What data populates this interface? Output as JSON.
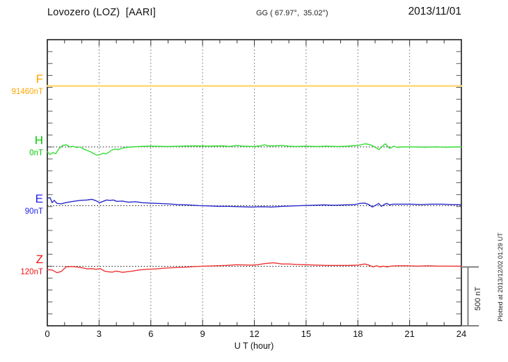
{
  "header": {
    "title": "Lovozero (LOZ)  [AARI]",
    "coords": "GG ( 67.97°,  35.02°)",
    "date": "2013/11/01"
  },
  "x_axis": {
    "label": "U T (hour)",
    "tick_labels": [
      "0",
      "3",
      "6",
      "9",
      "12",
      "15",
      "18",
      "21",
      "24"
    ]
  },
  "scale_bar": {
    "label": "500 nT",
    "nT": 500
  },
  "watermark": "Plotted at 2013/12/02 01:29 UT",
  "chart_data": {
    "type": "line",
    "title": "Lovozero (LOZ) [AARI] magnetogram, 2013/11/01",
    "xlabel": "U T (hour)",
    "x_range_hours": [
      0,
      24
    ],
    "x_major_tick_hours": 3,
    "x_minor_tick_hours": 1,
    "grid_hours": [
      3,
      6,
      9,
      12,
      15,
      18,
      21
    ],
    "nT_per_division": 100,
    "scale_bar_nT": 500,
    "grid": "vertical-dotted",
    "frame_color": "#1a1a1a",
    "baseline_style": "dotted-black",
    "series": [
      {
        "name": "F",
        "baseline_value": "91460nT",
        "label_color": "#FFA500",
        "color": "#FFD878",
        "points": [
          [
            0,
            0
          ],
          [
            24,
            0
          ]
        ]
      },
      {
        "name": "H",
        "baseline_value": "0nT",
        "label_color": "#00CC00",
        "color": "#33DD33",
        "points": [
          [
            0,
            -41
          ],
          [
            0.16,
            -64
          ],
          [
            0.32,
            -47
          ],
          [
            0.48,
            -58
          ],
          [
            0.69,
            -12
          ],
          [
            0.89,
            12
          ],
          [
            1.09,
            18
          ],
          [
            1.29,
            0
          ],
          [
            1.49,
            6
          ],
          [
            1.69,
            -6
          ],
          [
            1.9,
            0
          ],
          [
            2.1,
            -18
          ],
          [
            2.3,
            -29
          ],
          [
            2.5,
            -41
          ],
          [
            2.7,
            -58
          ],
          [
            2.9,
            -70
          ],
          [
            3.07,
            -64
          ],
          [
            3.23,
            -53
          ],
          [
            3.39,
            -58
          ],
          [
            3.55,
            -47
          ],
          [
            3.71,
            -29
          ],
          [
            3.91,
            -18
          ],
          [
            4.11,
            -23
          ],
          [
            4.32,
            -12
          ],
          [
            4.52,
            -6
          ],
          [
            4.92,
            0
          ],
          [
            5.32,
            3
          ],
          [
            5.73,
            6
          ],
          [
            6.13,
            6
          ],
          [
            6.94,
            3
          ],
          [
            7.75,
            6
          ],
          [
            8.55,
            9
          ],
          [
            9.36,
            6
          ],
          [
            10.16,
            9
          ],
          [
            10.57,
            3
          ],
          [
            10.97,
            12
          ],
          [
            11.37,
            6
          ],
          [
            11.98,
            3
          ],
          [
            12.38,
            9
          ],
          [
            12.58,
            18
          ],
          [
            12.79,
            9
          ],
          [
            13.19,
            9
          ],
          [
            13.59,
            12
          ],
          [
            13.99,
            6
          ],
          [
            14.4,
            3
          ],
          [
            15,
            6
          ],
          [
            15.61,
            3
          ],
          [
            16.21,
            6
          ],
          [
            16.82,
            3
          ],
          [
            17.42,
            6
          ],
          [
            17.82,
            12
          ],
          [
            18.03,
            12
          ],
          [
            18.43,
            26
          ],
          [
            18.63,
            21
          ],
          [
            18.83,
            12
          ],
          [
            19.03,
            -6
          ],
          [
            19.23,
            -23
          ],
          [
            19.35,
            -6
          ],
          [
            19.47,
            12
          ],
          [
            19.6,
            26
          ],
          [
            19.72,
            6
          ],
          [
            19.84,
            -12
          ],
          [
            19.96,
            -6
          ],
          [
            20.08,
            6
          ],
          [
            20.28,
            -3
          ],
          [
            20.68,
            0
          ],
          [
            21.29,
            0
          ],
          [
            21.89,
            -3
          ],
          [
            22.5,
            0
          ],
          [
            23.1,
            -3
          ],
          [
            23.7,
            0
          ],
          [
            24,
            0
          ]
        ]
      },
      {
        "name": "E",
        "baseline_value": "90nT",
        "label_color": "#2222EE",
        "color": "#2929CC",
        "points": [
          [
            0,
            63
          ],
          [
            0.16,
            68
          ],
          [
            0.28,
            25
          ],
          [
            0.4,
            45
          ],
          [
            0.56,
            19
          ],
          [
            0.81,
            16
          ],
          [
            1.09,
            27
          ],
          [
            1.49,
            36
          ],
          [
            1.9,
            45
          ],
          [
            2.3,
            48
          ],
          [
            2.58,
            54
          ],
          [
            2.82,
            42
          ],
          [
            3.03,
            25
          ],
          [
            3.23,
            36
          ],
          [
            3.43,
            48
          ],
          [
            3.63,
            45
          ],
          [
            3.83,
            48
          ],
          [
            4.03,
            36
          ],
          [
            4.32,
            39
          ],
          [
            4.72,
            30
          ],
          [
            5.12,
            33
          ],
          [
            5.53,
            25
          ],
          [
            5.93,
            22
          ],
          [
            6.33,
            19
          ],
          [
            6.94,
            16
          ],
          [
            7.54,
            10
          ],
          [
            8.15,
            7
          ],
          [
            8.75,
            1
          ],
          [
            9.36,
            -2
          ],
          [
            9.96,
            -5
          ],
          [
            10.57,
            -5
          ],
          [
            11.17,
            -8
          ],
          [
            11.78,
            -11
          ],
          [
            12.38,
            -8
          ],
          [
            12.99,
            -11
          ],
          [
            13.59,
            -5
          ],
          [
            14.2,
            -2
          ],
          [
            14.8,
            1
          ],
          [
            15.41,
            4
          ],
          [
            16.01,
            7
          ],
          [
            16.62,
            4
          ],
          [
            17.22,
            7
          ],
          [
            17.83,
            10
          ],
          [
            18.15,
            19
          ],
          [
            18.39,
            22
          ],
          [
            18.63,
            10
          ],
          [
            18.84,
            -11
          ],
          [
            19.04,
            4
          ],
          [
            19.2,
            19
          ],
          [
            19.36,
            -5
          ],
          [
            19.52,
            10
          ],
          [
            19.68,
            19
          ],
          [
            19.84,
            7
          ],
          [
            20.04,
            13
          ],
          [
            20.45,
            13
          ],
          [
            21.05,
            13
          ],
          [
            21.66,
            10
          ],
          [
            22.26,
            13
          ],
          [
            22.87,
            13
          ],
          [
            23.47,
            10
          ],
          [
            24,
            10
          ]
        ]
      },
      {
        "name": "Z",
        "baseline_value": "120nT",
        "label_color": "#EE1111",
        "color": "#EE3333",
        "points": [
          [
            0,
            -28
          ],
          [
            0.28,
            -31
          ],
          [
            0.56,
            -54
          ],
          [
            0.81,
            -43
          ],
          [
            1.09,
            -5
          ],
          [
            1.37,
            -2
          ],
          [
            1.69,
            -5
          ],
          [
            2.02,
            -13
          ],
          [
            2.34,
            -22
          ],
          [
            2.58,
            -19
          ],
          [
            2.82,
            -25
          ],
          [
            3.07,
            -19
          ],
          [
            3.31,
            -40
          ],
          [
            3.55,
            -46
          ],
          [
            3.79,
            -49
          ],
          [
            3.95,
            -40
          ],
          [
            4.11,
            -43
          ],
          [
            4.36,
            -51
          ],
          [
            4.6,
            -46
          ],
          [
            4.92,
            -40
          ],
          [
            5.32,
            -31
          ],
          [
            5.81,
            -25
          ],
          [
            6.29,
            -22
          ],
          [
            6.78,
            -16
          ],
          [
            7.34,
            -11
          ],
          [
            7.95,
            -8
          ],
          [
            8.55,
            -2
          ],
          [
            9.16,
            1
          ],
          [
            9.76,
            4
          ],
          [
            10.36,
            7
          ],
          [
            10.97,
            13
          ],
          [
            11.78,
            10
          ],
          [
            12.18,
            13
          ],
          [
            12.58,
            22
          ],
          [
            12.91,
            27
          ],
          [
            13.11,
            30
          ],
          [
            13.31,
            25
          ],
          [
            13.59,
            19
          ],
          [
            13.99,
            19
          ],
          [
            14.4,
            16
          ],
          [
            15,
            13
          ],
          [
            15.61,
            10
          ],
          [
            16.21,
            7
          ],
          [
            16.82,
            7
          ],
          [
            17.42,
            7
          ],
          [
            18.03,
            10
          ],
          [
            18.39,
            19
          ],
          [
            18.63,
            10
          ],
          [
            18.88,
            -5
          ],
          [
            19.08,
            4
          ],
          [
            19.28,
            -5
          ],
          [
            19.48,
            1
          ],
          [
            19.68,
            -5
          ],
          [
            19.92,
            1
          ],
          [
            20.25,
            4
          ],
          [
            20.85,
            4
          ],
          [
            21.46,
            1
          ],
          [
            22.06,
            4
          ],
          [
            22.66,
            1
          ],
          [
            23.27,
            1
          ],
          [
            24,
            0
          ]
        ]
      }
    ]
  }
}
